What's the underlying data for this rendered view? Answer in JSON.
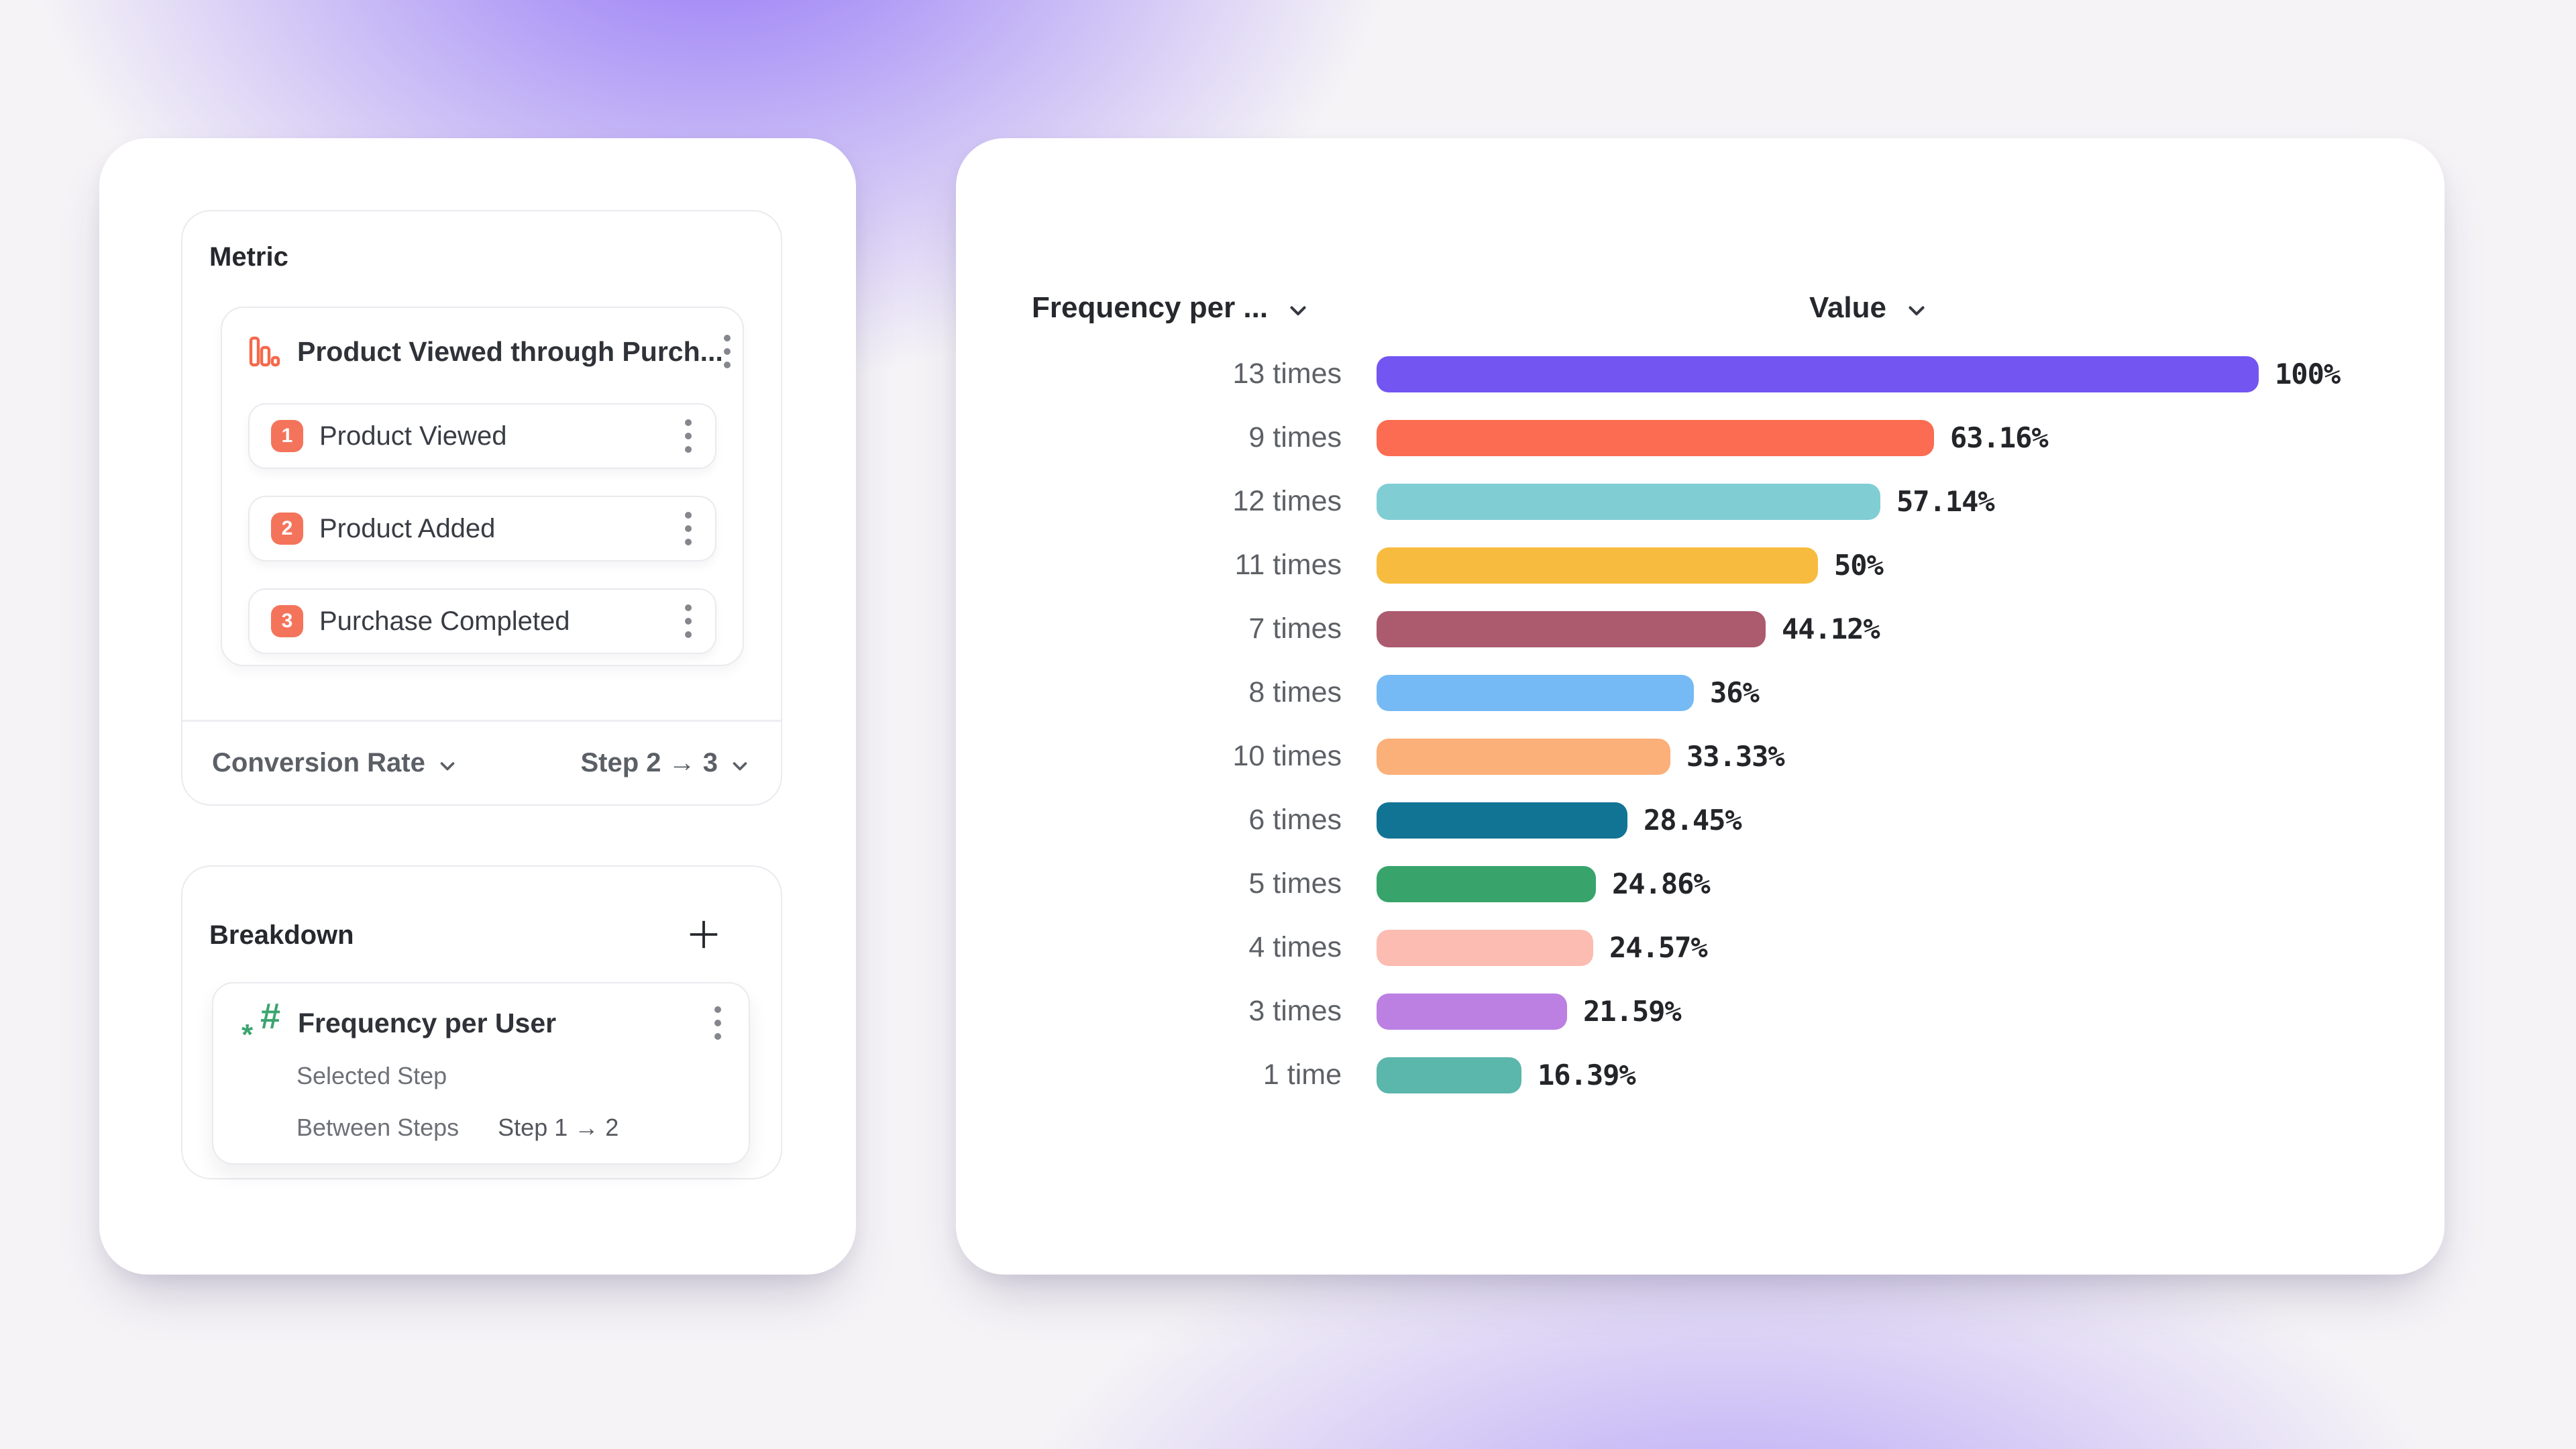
{
  "background": {
    "base_color": "#f5f3f6",
    "glow_color": "#8462f6"
  },
  "icons": {
    "funnel_metric": "bar-chart-outline-icon",
    "hash": "#",
    "hash_star": "*",
    "menu": "kebab-vertical-dots",
    "dropdown": "chevron-down",
    "add": "+"
  },
  "left_panel": {
    "metric": {
      "title": "Metric",
      "funnel": {
        "name": "Product Viewed through Purch...",
        "steps": [
          {
            "number": "1",
            "label": "Product Viewed"
          },
          {
            "number": "2",
            "label": "Product Added"
          },
          {
            "number": "3",
            "label": "Purchase Completed"
          }
        ]
      },
      "footer": {
        "measure": "Conversion Rate",
        "steps_range": "Step 2 → 3"
      }
    },
    "breakdown": {
      "title": "Breakdown",
      "item": {
        "name": "Frequency per User",
        "rows": [
          {
            "label": "Selected Step",
            "value": ""
          },
          {
            "label": "Between Steps",
            "value": "Step 1 → 2"
          }
        ]
      }
    }
  },
  "chart": {
    "column_headers": [
      {
        "label": "Frequency per ..."
      },
      {
        "label": "Value"
      }
    ]
  },
  "chart_data": {
    "type": "bar",
    "orientation": "horizontal",
    "title": "",
    "xlabel": "Value",
    "ylabel": "Frequency per User",
    "xlim": [
      0,
      100
    ],
    "grid": false,
    "legend": false,
    "value_label_position": "end-of-bar",
    "categories": [
      "13 times",
      "9 times",
      "12 times",
      "11 times",
      "7 times",
      "8 times",
      "10 times",
      "6 times",
      "5 times",
      "4 times",
      "3 times",
      "1 time"
    ],
    "values": [
      100,
      63.16,
      57.14,
      50,
      44.12,
      36,
      33.33,
      28.45,
      24.86,
      24.57,
      21.59,
      16.39
    ],
    "value_labels": [
      "100%",
      "63.16%",
      "57.14%",
      "50%",
      "44.12%",
      "36%",
      "33.33%",
      "28.45%",
      "24.86%",
      "24.57%",
      "21.59%",
      "16.39%"
    ],
    "bar_colors": [
      "#7355F2",
      "#FB6C52",
      "#80CDD4",
      "#F7BC3F",
      "#AC5A6E",
      "#75BAF4",
      "#FBAF79",
      "#127495",
      "#38A46C",
      "#FCBCB1",
      "#BC80E2",
      "#5BB6AB"
    ]
  }
}
